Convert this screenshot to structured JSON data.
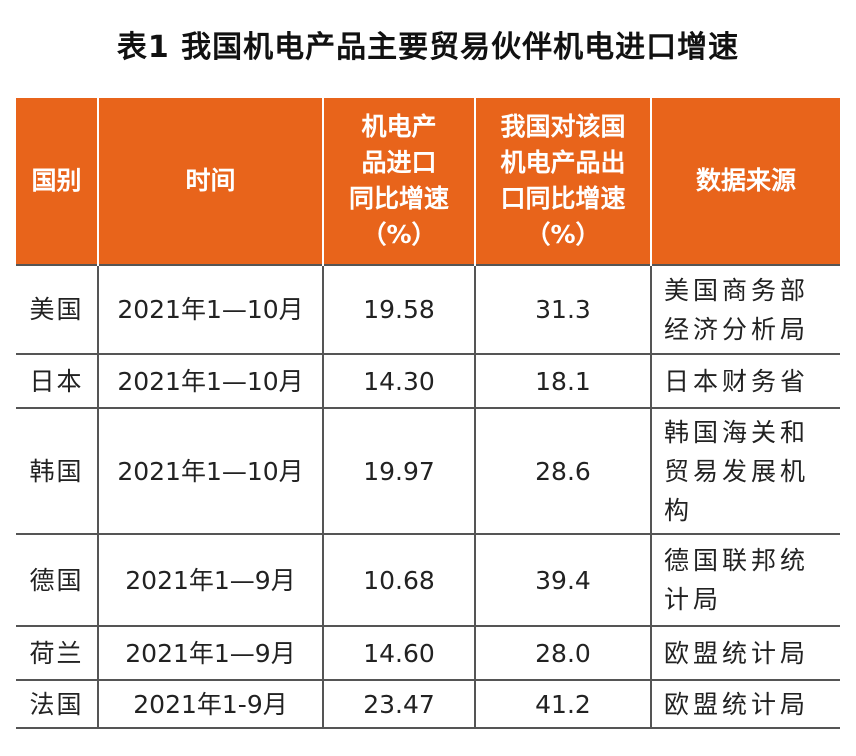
{
  "title": "表1  我国机电产品主要贸易伙伴机电进口增速",
  "table": {
    "headers": [
      [
        "国别"
      ],
      [
        "时间"
      ],
      [
        "机电产",
        "品进口",
        "同比增速",
        "（%）"
      ],
      [
        "我国对该国",
        "机电产品出",
        "口同比增速",
        "（%）"
      ],
      [
        "数据来源"
      ]
    ],
    "rows": [
      {
        "country": "美国",
        "period": "2021年1—10月",
        "import_growth": "19.58",
        "export_growth": "31.3",
        "source": "美国商务部经济分析局"
      },
      {
        "country": "日本",
        "period": "2021年1—10月",
        "import_growth": "14.30",
        "export_growth": "18.1",
        "source": "日本财务省"
      },
      {
        "country": "韩国",
        "period": "2021年1—10月",
        "import_growth": "19.97",
        "export_growth": "28.6",
        "source": "韩国海关和贸易发展机构"
      },
      {
        "country": "德国",
        "period": "2021年1—9月",
        "import_growth": "10.68",
        "export_growth": "39.4",
        "source": "德国联邦统计局"
      },
      {
        "country": "荷兰",
        "period": "2021年1—9月",
        "import_growth": "14.60",
        "export_growth": "28.0",
        "source": "欧盟统计局"
      },
      {
        "country": "法国",
        "period": "2021年1-9月",
        "import_growth": "23.47",
        "export_growth": "41.2",
        "source": "欧盟统计局"
      }
    ]
  },
  "colors": {
    "header_background": "#e8641b",
    "header_text": "#ffffff",
    "grid_lines": "#555555"
  }
}
